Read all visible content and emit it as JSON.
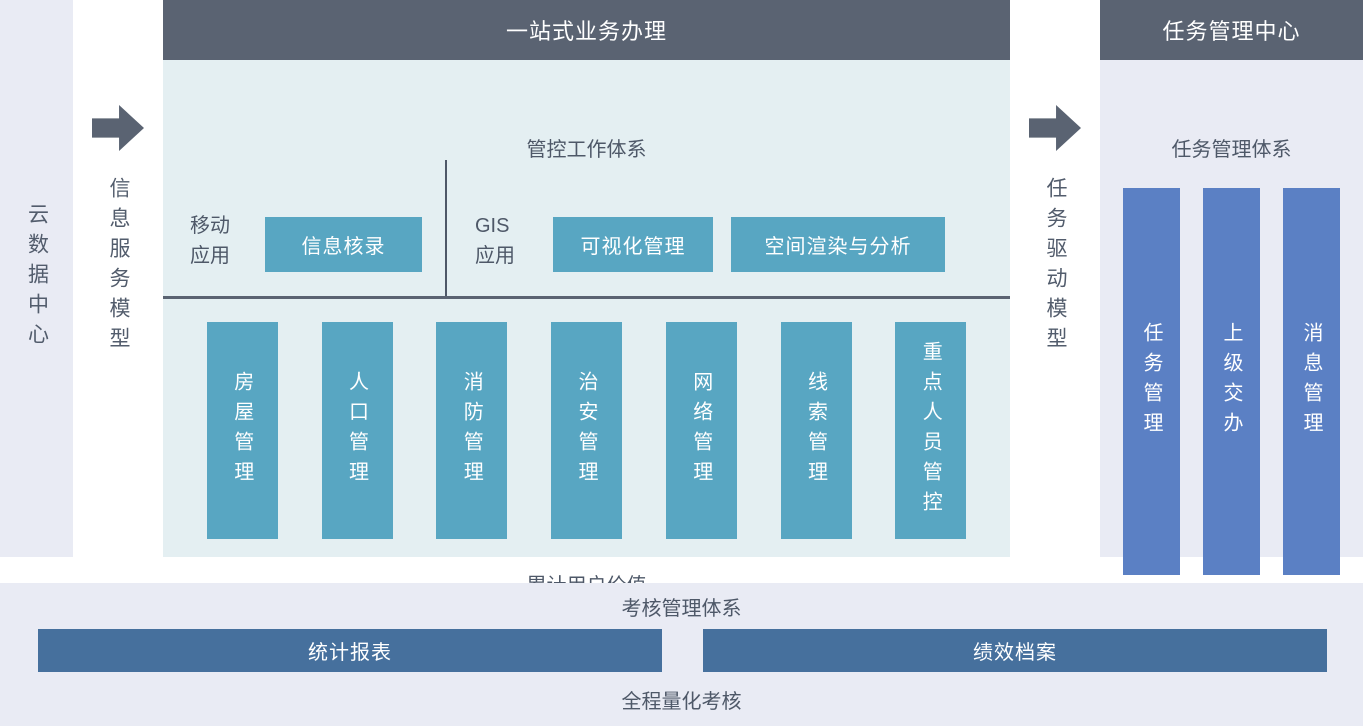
{
  "colors": {
    "dark_slate": "#5a6372",
    "teal": "#58a6c2",
    "teal_light_bg": "#e4eff2",
    "lavender_bg": "#e9ebf4",
    "blue_bar": "#5b80c4",
    "steel_blue_bar": "#46709d",
    "text_dark": "#4e5868",
    "text_on_fill": "#ffffff"
  },
  "left_column": {
    "label": "云数据中心"
  },
  "flow_left": {
    "label": "信息服务模型"
  },
  "center_panel": {
    "title": "一站式业务办理",
    "subtitle": "管控工作体系",
    "mobile_group": {
      "label": "移动应用",
      "buttons": [
        "信息核录"
      ]
    },
    "gis_group": {
      "label": "GIS 应用",
      "buttons": [
        "可视化管理",
        "空间渲染与分析"
      ]
    },
    "modules": [
      "房屋管理",
      "人口管理",
      "消防管理",
      "治安管理",
      "网络管理",
      "线索管理",
      "重点人员管控"
    ],
    "footer": "累计用户价值"
  },
  "flow_right": {
    "label": "任务驱动模型"
  },
  "right_panel": {
    "title": "任务管理中心",
    "subtitle": "任务管理体系",
    "modules": [
      "任务管理",
      "上级交办",
      "消息管理"
    ]
  },
  "bottom_panel": {
    "title": "考核管理体系",
    "bars": [
      "统计报表",
      "绩效档案"
    ],
    "footer": "全程量化考核"
  }
}
